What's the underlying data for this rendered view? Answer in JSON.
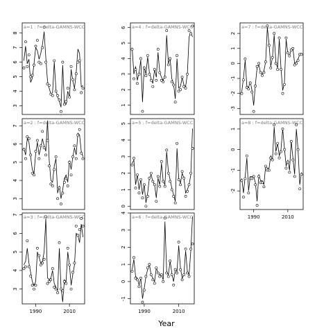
{
  "figure": {
    "xlabel": "Year"
  },
  "chart_data": [
    {
      "type": "line",
      "title": "a=1  :  f=delta-GAMNS-WCC",
      "x": [
        1983,
        1984,
        1985,
        1986,
        1987,
        1988,
        1989,
        1990,
        1991,
        1992,
        1993,
        1994,
        1995,
        1996,
        1997,
        1998,
        1999,
        2000,
        2001,
        2002,
        2003,
        2004,
        2005,
        2006,
        2007,
        2008,
        2009,
        2010,
        2011,
        2012,
        2013,
        2014,
        2015,
        2016,
        2017,
        2018
      ],
      "series": [
        {
          "style": "points",
          "values": [
            5.6,
            7.4,
            5.7,
            6.5,
            5.0,
            5.1,
            5.8,
            7.1,
            7.5,
            6.0,
            5.9,
            7.0,
            8.4,
            6.0,
            4.5,
            4.4,
            3.8,
            3.7,
            6.1,
            4.0,
            3.7,
            3.4,
            2.6,
            6.0,
            3.1,
            3.3,
            4.2,
            3.6,
            5.7,
            4.8,
            4.1,
            5.2,
            6.0,
            6.1,
            3.9,
            4.2
          ]
        },
        {
          "style": "line",
          "values": [
            6.1,
            7.1,
            5.9,
            6.2,
            4.6,
            4.9,
            5.9,
            7.0,
            6.8,
            6.2,
            6.6,
            7.2,
            8.1,
            6.3,
            4.7,
            4.2,
            3.8,
            3.9,
            6.0,
            4.1,
            3.6,
            3.3,
            2.9,
            5.8,
            3.2,
            3.1,
            4.0,
            3.6,
            5.5,
            4.7,
            4.2,
            5.3,
            6.9,
            6.6,
            4.3,
            4.4
          ]
        }
      ],
      "ylim": [
        2.4,
        8.7
      ],
      "yticks": [
        3,
        4,
        5,
        6,
        7,
        8
      ]
    },
    {
      "type": "line",
      "title": "a=2  :  f=delta-GAMNS-WCC",
      "x": [
        1983,
        1984,
        1985,
        1986,
        1987,
        1988,
        1989,
        1990,
        1991,
        1992,
        1993,
        1994,
        1995,
        1996,
        1997,
        1998,
        1999,
        2000,
        2001,
        2002,
        2003,
        2004,
        2005,
        2006,
        2007,
        2008,
        2009,
        2010,
        2011,
        2012,
        2013,
        2014,
        2015,
        2016,
        2017,
        2018
      ],
      "series": [
        {
          "style": "points",
          "values": [
            5.7,
            5.2,
            6.4,
            6.3,
            5.4,
            4.4,
            4.3,
            5.6,
            6.2,
            5.2,
            5.9,
            6.7,
            5.8,
            5.4,
            6.2,
            4.8,
            3.8,
            3.7,
            4.6,
            5.3,
            3.0,
            3.6,
            2.7,
            3.3,
            3.9,
            4.1,
            3.7,
            5.0,
            4.3,
            5.3,
            5.9,
            5.2,
            6.5,
            6.8,
            5.5,
            5.2
          ]
        },
        {
          "style": "line",
          "values": [
            5.8,
            5.4,
            6.3,
            6.1,
            5.3,
            4.6,
            4.4,
            5.5,
            6.1,
            5.4,
            5.8,
            6.3,
            5.9,
            5.6,
            7.3,
            5.1,
            4.0,
            3.9,
            4.8,
            5.2,
            3.3,
            3.7,
            3.0,
            3.5,
            4.1,
            4.3,
            3.9,
            5.1,
            4.6,
            5.3,
            5.8,
            5.4,
            6.6,
            6.5,
            5.6,
            5.3
          ]
        }
      ],
      "ylim": [
        2.4,
        7.4
      ],
      "yticks": [
        3,
        4,
        5,
        6,
        7
      ]
    },
    {
      "type": "line",
      "title": "a=3  :  f=delta-GAMNS-WCC",
      "x": [
        1983,
        1984,
        1985,
        1986,
        1987,
        1988,
        1989,
        1990,
        1991,
        1992,
        1993,
        1994,
        1995,
        1996,
        1997,
        1998,
        1999,
        2000,
        2001,
        2002,
        2003,
        2004,
        2005,
        2006,
        2007,
        2008,
        2009,
        2010,
        2011,
        2012,
        2013,
        2014,
        2015,
        2016,
        2017,
        2018
      ],
      "series": [
        {
          "style": "points",
          "values": [
            4.1,
            4.2,
            5.6,
            4.2,
            3.7,
            3.2,
            3.0,
            3.2,
            5.2,
            4.8,
            4.3,
            4.4,
            4.6,
            6.9,
            3.3,
            3.4,
            3.5,
            4.1,
            3.1,
            3.0,
            2.8,
            5.5,
            3.0,
            2.9,
            3.4,
            3.3,
            5.2,
            4.3,
            3.0,
            3.9,
            4.4,
            6.4,
            5.9,
            6.2,
            6.8,
            6.4
          ]
        },
        {
          "style": "line",
          "values": [
            4.3,
            4.5,
            5.2,
            4.4,
            3.9,
            3.4,
            3.2,
            3.4,
            5.0,
            4.7,
            4.4,
            4.5,
            5.0,
            6.8,
            3.6,
            3.5,
            3.6,
            4.0,
            3.3,
            3.1,
            2.9,
            5.2,
            3.1,
            2.3,
            3.5,
            3.4,
            5.0,
            4.3,
            3.2,
            3.8,
            4.3,
            6.0,
            5.9,
            5.5,
            6.5,
            5.8
          ]
        }
      ],
      "ylim": [
        2.2,
        7.1
      ],
      "yticks": [
        3,
        4,
        5,
        6,
        7
      ]
    },
    {
      "type": "line",
      "title": "a=4  :  f=delta-GAMNS-WCC",
      "x": [
        1983,
        1984,
        1985,
        1986,
        1987,
        1988,
        1989,
        1990,
        1991,
        1992,
        1993,
        1994,
        1995,
        1996,
        1997,
        1998,
        1999,
        2000,
        2001,
        2002,
        2003,
        2004,
        2005,
        2006,
        2007,
        2008,
        2009,
        2010,
        2011,
        2012,
        2013,
        2014,
        2015,
        2016,
        2017,
        2018
      ],
      "series": [
        {
          "style": "points",
          "values": [
            4.6,
            2.7,
            3.3,
            2.4,
            3.0,
            4.0,
            0.6,
            3.4,
            2.9,
            4.2,
            3.0,
            2.6,
            2.2,
            3.3,
            2.6,
            4.6,
            3.1,
            2.6,
            2.5,
            2.8,
            5.8,
            3.6,
            4.0,
            2.5,
            2.3,
            1.2,
            4.2,
            1.9,
            2.0,
            2.8,
            2.2,
            2.1,
            3.0,
            5.8,
            5.6,
            6.1
          ]
        },
        {
          "style": "line",
          "values": [
            4.7,
            3.0,
            3.5,
            2.6,
            3.1,
            3.9,
            1.2,
            3.5,
            3.0,
            4.1,
            3.1,
            2.7,
            2.4,
            3.3,
            2.8,
            4.4,
            3.1,
            2.8,
            2.6,
            2.9,
            5.5,
            3.7,
            4.0,
            2.7,
            2.4,
            1.4,
            4.0,
            2.1,
            2.2,
            2.8,
            2.3,
            2.2,
            3.0,
            5.4,
            5.7,
            5.4
          ]
        }
      ],
      "ylim": [
        0.4,
        6.3
      ],
      "yticks": [
        1,
        2,
        3,
        4,
        5,
        6
      ]
    },
    {
      "type": "line",
      "title": "a=5  :  f=delta-GAMNS-WCC",
      "x": [
        1983,
        1984,
        1985,
        1986,
        1987,
        1988,
        1989,
        1990,
        1991,
        1992,
        1993,
        1994,
        1995,
        1996,
        1997,
        1998,
        1999,
        2000,
        2001,
        2002,
        2003,
        2004,
        2005,
        2006,
        2007,
        2008,
        2009,
        2010,
        2011,
        2012,
        2013,
        2014,
        2015,
        2016,
        2017,
        2018
      ],
      "series": [
        {
          "style": "points",
          "values": [
            2.5,
            2.9,
            1.1,
            1.9,
            0.8,
            1.6,
            0.5,
            1.3,
            0.0,
            0.6,
            1.7,
            2.0,
            1.5,
            1.3,
            0.3,
            1.8,
            1.2,
            2.7,
            1.5,
            1.2,
            3.4,
            2.0,
            1.5,
            1.0,
            0.6,
            0.2,
            3.8,
            1.6,
            1.3,
            2.1,
            1.7,
            0.6,
            0.9,
            1.3,
            2.0,
            3.5
          ]
        },
        {
          "style": "line",
          "values": [
            2.6,
            2.8,
            1.3,
            1.9,
            1.0,
            1.6,
            0.7,
            1.3,
            0.2,
            0.8,
            1.7,
            1.9,
            1.5,
            1.3,
            0.5,
            1.7,
            1.3,
            2.6,
            1.5,
            1.3,
            3.3,
            2.1,
            1.6,
            1.1,
            0.7,
            0.3,
            3.5,
            1.7,
            1.4,
            2.0,
            1.7,
            0.8,
            1.0,
            1.3,
            1.9,
            4.7
          ]
        }
      ],
      "ylim": [
        -0.2,
        5.3
      ],
      "yticks": [
        0,
        1,
        2,
        3,
        4,
        5
      ]
    },
    {
      "type": "line",
      "title": "a=6  :  f=delta-GAMNS-WCC",
      "x": [
        1983,
        1984,
        1985,
        1986,
        1987,
        1988,
        1989,
        1990,
        1991,
        1992,
        1993,
        1994,
        1995,
        1996,
        1997,
        1998,
        1999,
        2000,
        2001,
        2002,
        2003,
        2004,
        2005,
        2006,
        2007,
        2008,
        2009,
        2010,
        2011,
        2012,
        2013,
        2014,
        2015,
        2016,
        2017,
        2018
      ],
      "series": [
        {
          "style": "points",
          "values": [
            0.6,
            1.4,
            0.2,
            0.1,
            -0.3,
            0.2,
            -1.2,
            -0.5,
            0.3,
            0.8,
            1.0,
            0.4,
            0.1,
            -0.1,
            0.8,
            0.5,
            0.3,
            0.4,
            0.0,
            3.7,
            0.5,
            0.3,
            1.2,
            0.4,
            -0.2,
            0.7,
            0.5,
            2.3,
            0.7,
            0.1,
            0.4,
            1.9,
            0.5,
            0.3,
            1.9,
            2.2
          ]
        },
        {
          "style": "line",
          "values": [
            0.7,
            1.3,
            0.3,
            0.2,
            -0.2,
            0.2,
            -1.0,
            -0.4,
            0.3,
            0.7,
            1.0,
            0.4,
            0.2,
            0.0,
            0.8,
            0.5,
            0.4,
            0.4,
            0.1,
            3.5,
            0.6,
            0.4,
            1.2,
            0.5,
            0.0,
            0.7,
            0.6,
            2.1,
            0.8,
            0.2,
            0.4,
            1.8,
            0.6,
            0.4,
            1.8,
            3.8
          ]
        }
      ],
      "ylim": [
        -1.3,
        4.0
      ],
      "yticks": [
        -1,
        0,
        1,
        2,
        3,
        4
      ]
    },
    {
      "type": "line",
      "title": "a=7  :  f=delta-GAMNS-WCC",
      "x": [
        1983,
        1984,
        1985,
        1986,
        1987,
        1988,
        1989,
        1990,
        1991,
        1992,
        1993,
        1994,
        1995,
        1996,
        1997,
        1998,
        1999,
        2000,
        2001,
        2002,
        2003,
        2004,
        2005,
        2006,
        2007,
        2008,
        2009,
        2010,
        2011,
        2012,
        2013,
        2014,
        2015,
        2016,
        2017,
        2018
      ],
      "series": [
        {
          "style": "points",
          "values": [
            -2.0,
            -1.1,
            0.3,
            -1.6,
            -1.7,
            -1.3,
            -1.9,
            -3.2,
            -1.5,
            -0.2,
            0.0,
            -0.6,
            -0.8,
            -0.6,
            0.1,
            2.5,
            1.2,
            -0.3,
            0.4,
            2.0,
            0.0,
            -0.4,
            1.7,
            -0.4,
            -2.0,
            -1.4,
            1.7,
            0.7,
            0.5,
            0.9,
            1.0,
            -0.1,
            0.0,
            0.2,
            0.6,
            0.6
          ]
        },
        {
          "style": "line",
          "values": [
            -1.9,
            -1.0,
            0.2,
            -1.5,
            -1.6,
            -1.2,
            -1.8,
            -2.8,
            -1.4,
            -0.3,
            -0.1,
            -0.6,
            -0.7,
            -0.5,
            0.1,
            2.4,
            1.3,
            -0.2,
            0.4,
            1.9,
            0.1,
            -0.3,
            1.6,
            -0.3,
            -1.8,
            -1.3,
            1.6,
            0.7,
            0.5,
            0.9,
            1.0,
            0.0,
            0.1,
            0.3,
            0.6,
            0.7
          ]
        }
      ],
      "ylim": [
        -3.4,
        2.7
      ],
      "yticks": [
        -3,
        -2,
        -1,
        0,
        1,
        2
      ]
    },
    {
      "type": "line",
      "title": "a=8  :  f=delta-GAMNS-WCC",
      "x": [
        1983,
        1984,
        1985,
        1986,
        1987,
        1988,
        1989,
        1990,
        1991,
        1992,
        1993,
        1994,
        1995,
        1996,
        1997,
        1998,
        1999,
        2000,
        2001,
        2002,
        2003,
        2004,
        2005,
        2006,
        2007,
        2008,
        2009,
        2010,
        2011,
        2012,
        2013,
        2014,
        2015,
        2016,
        2017,
        2018
      ],
      "series": [
        {
          "style": "points",
          "values": [
            -1.5,
            -2.3,
            -1.4,
            -0.3,
            -2.1,
            -1.4,
            -1.4,
            -1.3,
            -1.7,
            -2.7,
            -1.3,
            -1.6,
            -1.6,
            -1.8,
            -0.8,
            -1.0,
            -1.0,
            -0.4,
            -0.5,
            1.2,
            -0.2,
            0.3,
            -0.4,
            -0.1,
            1.0,
            0.0,
            -0.9,
            -0.6,
            -1.1,
            0.4,
            -0.5,
            -1.3,
            1.2,
            0.0,
            -1.9,
            -1.2
          ]
        },
        {
          "style": "line",
          "values": [
            -1.4,
            -2.1,
            -1.3,
            -0.4,
            -2.0,
            -1.3,
            -1.3,
            -1.3,
            -1.6,
            -2.5,
            -1.2,
            -1.5,
            -1.5,
            -1.7,
            -0.8,
            -0.9,
            -0.9,
            -0.3,
            -0.5,
            1.1,
            -0.1,
            0.3,
            -0.3,
            0.0,
            1.0,
            0.1,
            -0.8,
            -0.5,
            -1.0,
            0.4,
            -0.4,
            -1.2,
            1.0,
            0.0,
            -1.7,
            -1.1
          ]
        }
      ],
      "ylim": [
        -2.9,
        1.5
      ],
      "yticks": [
        -2,
        -1,
        0,
        1
      ]
    }
  ],
  "xticks": [
    1990,
    2010
  ],
  "xlim": [
    1982,
    2019
  ]
}
